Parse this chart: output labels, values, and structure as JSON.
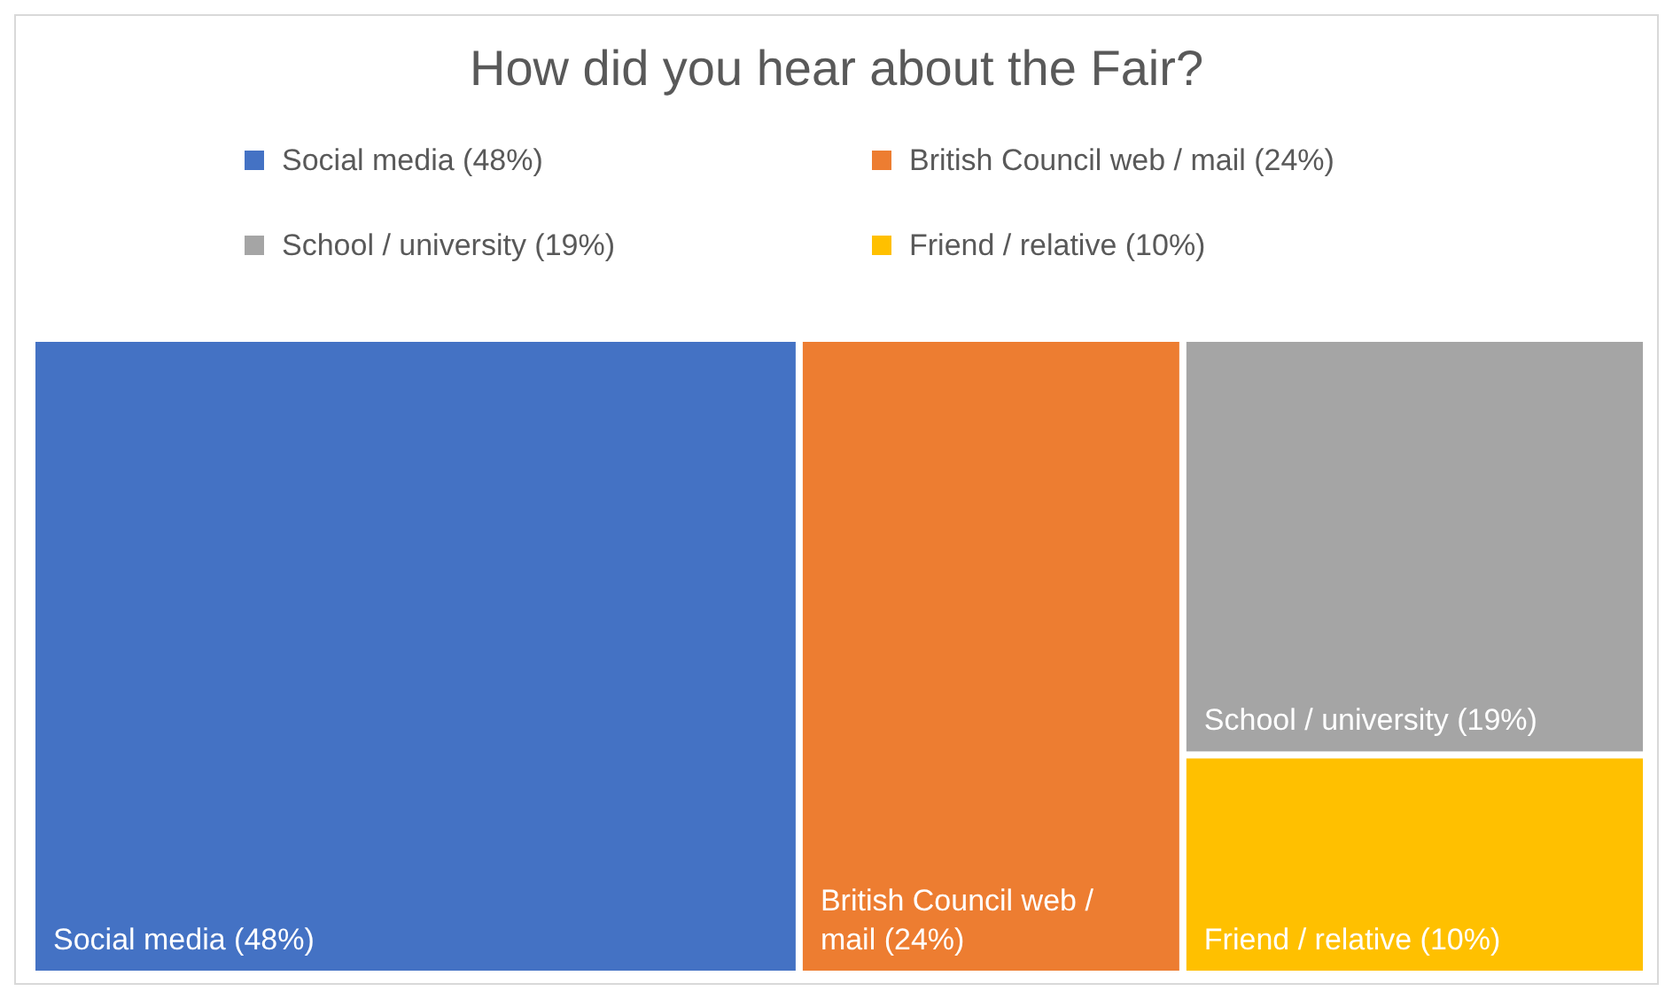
{
  "chart_data": {
    "type": "other",
    "title": "How did you hear about the Fair?",
    "series": [
      {
        "name": "Social media",
        "color": "#4472c4",
        "values": [
          48
        ],
        "value_labels": [
          "(48%)"
        ]
      },
      {
        "name": "British Council web / mail",
        "color": "#ed7d31",
        "values": [
          24
        ],
        "value_labels": [
          "(24%)"
        ]
      },
      {
        "name": "School / university",
        "color": "#a5a5a5",
        "values": [
          19
        ],
        "value_labels": [
          "(19%)"
        ]
      },
      {
        "name": "Friend / relative",
        "color": "#ffc000",
        "values": [
          10
        ],
        "value_labels": [
          "(10%)"
        ]
      }
    ],
    "legend": "top"
  }
}
